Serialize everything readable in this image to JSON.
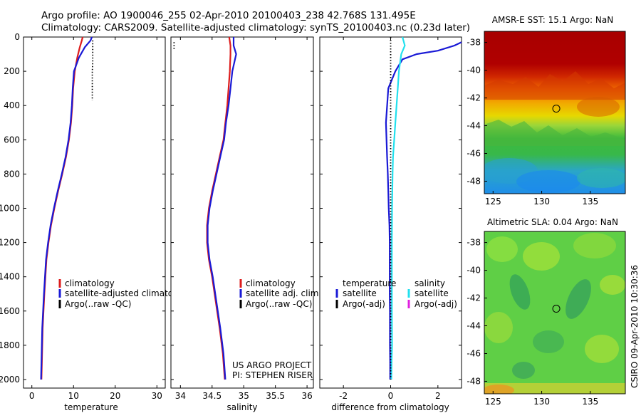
{
  "header": {
    "title_line1": "Argo profile: AO 1900046_255 02-Apr-2010 20100403_238 42.768S 131.495E",
    "title_line2": "Climatology: CARS2009. Satellite-adjusted climatology: synTS_20100403.nc (0.23d later)"
  },
  "credits": {
    "project": "US ARGO PROJECT",
    "pi": "PI: STEPHEN RISER",
    "stamp": "CSIRO 09-Apr-2010 10:30:36"
  },
  "colors": {
    "climatology": "#dd1c1c",
    "satellite": "#1a1ad6",
    "argo": "#000000",
    "satellite_salinity": "#22e0ee",
    "argo_adj_salinity": "#e020e0"
  },
  "chart_data": [
    {
      "type": "line",
      "id": "temperature",
      "xlabel": "temperature",
      "ylabel": "",
      "xlim": [
        -2,
        32
      ],
      "ylim": [
        2050,
        0
      ],
      "xticks": [
        "0",
        "10",
        "20",
        "30"
      ],
      "yticks": [
        "0",
        "200",
        "400",
        "600",
        "800",
        "1000",
        "1200",
        "1400",
        "1600",
        "1800",
        "2000"
      ],
      "legend": [
        "climatology",
        "satellite-adjusted climatology",
        "Argo(..raw -QC)"
      ],
      "legend_visible": [
        "climatology",
        "satellite-adjusted climatolog",
        "Argo(..raw -QC)"
      ],
      "series": [
        {
          "name": "climatology",
          "color": "#dd1c1c",
          "x": [
            12.2,
            12.0,
            11.5,
            10.9,
            10.3,
            9.9,
            9.7,
            9.4,
            8.9,
            8.2,
            7.3,
            6.3,
            5.4,
            4.6,
            4.0,
            3.5,
            3.0,
            2.6,
            2.4,
            2.3
          ],
          "depth": [
            0,
            20,
            60,
            120,
            200,
            300,
            400,
            500,
            600,
            700,
            800,
            900,
            1000,
            1100,
            1200,
            1300,
            1500,
            1700,
            1900,
            2000
          ]
        },
        {
          "name": "satellite-adjusted climatology",
          "color": "#1a1ad6",
          "x": [
            14.4,
            14.1,
            12.7,
            11.3,
            10.1,
            9.8,
            9.6,
            9.3,
            8.8,
            8.1,
            7.2,
            6.2,
            5.3,
            4.5,
            3.9,
            3.4,
            2.9,
            2.5,
            2.3,
            2.2
          ],
          "depth": [
            0,
            20,
            60,
            120,
            200,
            300,
            400,
            500,
            600,
            700,
            800,
            900,
            1000,
            1100,
            1200,
            1300,
            1500,
            1700,
            1900,
            2000
          ]
        },
        {
          "name": "Argo(..raw -QC)",
          "color": "#000000",
          "dotted": true,
          "x": [
            14.6,
            14.6,
            14.6,
            14.6,
            14.5,
            14.5,
            14.5
          ],
          "depth": [
            20,
            60,
            100,
            150,
            200,
            300,
            370
          ]
        }
      ]
    },
    {
      "type": "line",
      "id": "salinity",
      "xlabel": "salinity",
      "ylabel": "",
      "xlim": [
        33.85,
        36.1
      ],
      "ylim": [
        2050,
        0
      ],
      "xticks": [
        "34",
        "34.5",
        "35",
        "35.5",
        "36"
      ],
      "legend": [
        "climatology",
        "satellite adj. clim.",
        "Argo(..raw -QC)"
      ],
      "series": [
        {
          "name": "climatology",
          "color": "#dd1c1c",
          "x": [
            34.77,
            34.79,
            34.79,
            34.78,
            34.76,
            34.74,
            34.71,
            34.68,
            34.62,
            34.56,
            34.5,
            34.45,
            34.42,
            34.42,
            34.45,
            34.5,
            34.56,
            34.62,
            34.67,
            34.7
          ],
          "depth": [
            0,
            50,
            100,
            200,
            300,
            400,
            500,
            600,
            700,
            800,
            900,
            1000,
            1100,
            1200,
            1300,
            1400,
            1550,
            1700,
            1850,
            2000
          ]
        },
        {
          "name": "satellite adj. clim.",
          "color": "#1a1ad6",
          "x": [
            34.84,
            34.84,
            34.88,
            34.82,
            34.79,
            34.76,
            34.72,
            34.69,
            34.63,
            34.57,
            34.51,
            34.46,
            34.43,
            34.43,
            34.46,
            34.51,
            34.57,
            34.63,
            34.68,
            34.71
          ],
          "depth": [
            0,
            50,
            100,
            200,
            300,
            400,
            500,
            600,
            700,
            800,
            900,
            1000,
            1100,
            1200,
            1300,
            1400,
            1550,
            1700,
            1850,
            2000
          ]
        },
        {
          "name": "Argo(..raw -QC)",
          "color": "#000000",
          "dotted": true,
          "x": [
            33.9,
            33.9,
            33.9
          ],
          "depth": [
            30,
            50,
            70
          ]
        }
      ]
    },
    {
      "type": "line",
      "id": "difference",
      "xlabel": "difference from climatology",
      "ylabel": "",
      "xlim": [
        -3,
        3
      ],
      "ylim": [
        2050,
        0
      ],
      "xticks": [
        "-2",
        "0",
        "2"
      ],
      "legend_groups": [
        {
          "heading": "temperature",
          "entries": [
            "satellite",
            "Argo(-adj)"
          ]
        },
        {
          "heading": "salinity",
          "entries": [
            "satellite",
            "Argo(-adj)"
          ]
        }
      ],
      "series": [
        {
          "name": "temperature satellite",
          "color": "#1a1ad6",
          "x": [
            3.0,
            2.7,
            2.0,
            1.1,
            0.5,
            0.2,
            -0.1,
            -0.2,
            -0.15,
            -0.12,
            -0.1,
            -0.08,
            -0.05,
            -0.04,
            -0.04,
            -0.04,
            -0.03,
            -0.03,
            -0.02,
            -0.02
          ],
          "depth": [
            30,
            50,
            80,
            100,
            130,
            200,
            300,
            500,
            700,
            800,
            900,
            1000,
            1100,
            1200,
            1400,
            1500,
            1600,
            1800,
            1900,
            2000
          ]
        },
        {
          "name": "salinity satellite",
          "color": "#22e0ee",
          "x": [
            0.5,
            0.6,
            0.45,
            0.35,
            0.3,
            0.25,
            0.2,
            0.15,
            0.1,
            0.08,
            0.06,
            0.05,
            0.05,
            0.05,
            0.06,
            0.04,
            0.03
          ],
          "depth": [
            0,
            50,
            100,
            200,
            300,
            400,
            500,
            600,
            700,
            800,
            1000,
            1200,
            1400,
            1600,
            1800,
            1900,
            2000
          ]
        },
        {
          "name": "zero",
          "color": "#000000",
          "dotted": true,
          "x": [
            0,
            0
          ],
          "depth": [
            0,
            2000
          ]
        }
      ]
    }
  ],
  "maps": [
    {
      "id": "sst",
      "title": "AMSR-E SST: 15.1 Argo: NaN",
      "xticks": [
        "125",
        "130",
        "135"
      ],
      "yticks": [
        "-38",
        "-40",
        "-42",
        "-44",
        "-46",
        "-48"
      ],
      "marker": {
        "lon": 131.5,
        "lat": -42.77
      }
    },
    {
      "id": "sla",
      "title": "Altimetric SLA: 0.04 Argo: NaN",
      "xticks": [
        "125",
        "130",
        "135"
      ],
      "yticks": [
        "-38",
        "-40",
        "-42",
        "-44",
        "-46",
        "-48"
      ],
      "marker": {
        "lon": 131.5,
        "lat": -42.77
      }
    }
  ]
}
